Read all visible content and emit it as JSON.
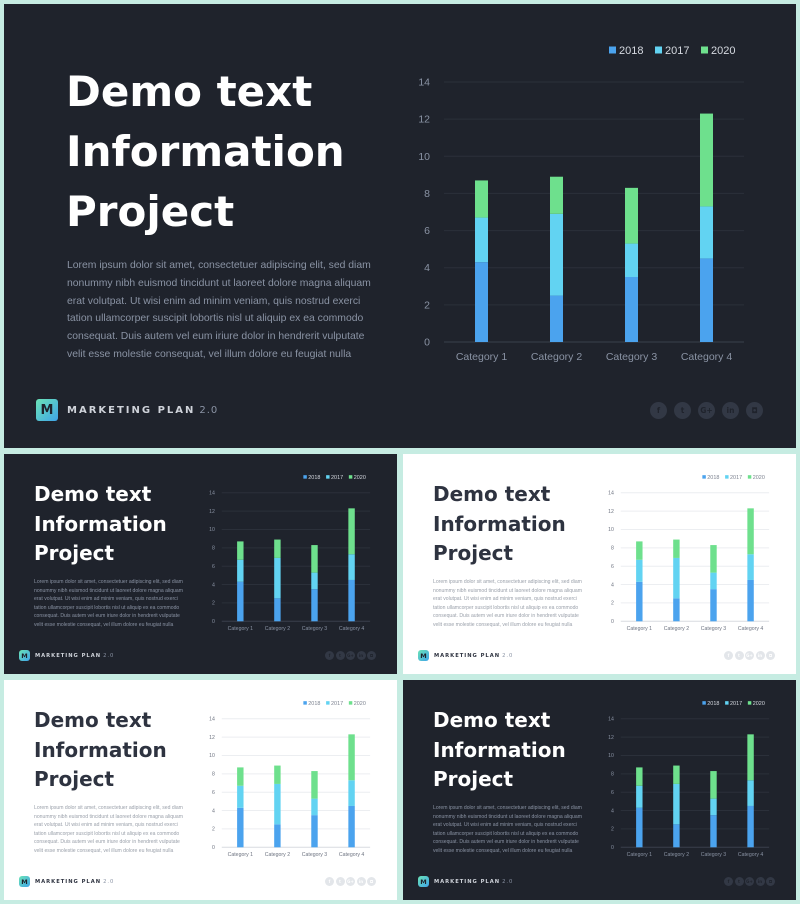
{
  "slide": {
    "title_lines": [
      "Demo text",
      "Information",
      "Project"
    ],
    "body_lines": [
      "Lorem ipsum dolor sit amet, consectetuer adipiscing elit, sed diam",
      "nonummy nibh euismod tincidunt ut laoreet dolore magna aliquam",
      "erat volutpat. Ut wisi enim ad minim veniam, quis nostrud exerci",
      "tation ullamcorper suscipit lobortis nisl ut aliquip ex ea commodo",
      "consequat. Duis autem vel eum iriure dolor in hendrerit vulputate",
      "velit esse molestie consequat, vel illum dolore eu feugiat nulla"
    ],
    "logo_letter": "M",
    "brand_name": "MARKETING PLAN",
    "brand_version": "2.0",
    "socials": [
      {
        "icon": "facebook-icon",
        "glyph": "f"
      },
      {
        "icon": "twitter-icon",
        "glyph": "t"
      },
      {
        "icon": "google-plus-icon",
        "glyph": "G+"
      },
      {
        "icon": "linkedin-icon",
        "glyph": "in"
      },
      {
        "icon": "instagram-icon",
        "glyph": "◘"
      }
    ]
  },
  "variants": [
    {
      "id": "main",
      "theme": "dark"
    },
    {
      "id": "tl",
      "theme": "dark"
    },
    {
      "id": "tr",
      "theme": "light"
    },
    {
      "id": "bl",
      "theme": "light"
    },
    {
      "id": "br",
      "theme": "dark"
    }
  ],
  "chart_data": {
    "type": "bar",
    "stacked": true,
    "categories": [
      "Category 1",
      "Category 2",
      "Category 3",
      "Category 4"
    ],
    "series": [
      {
        "name": "2018",
        "values": [
          4.3,
          2.5,
          3.5,
          4.5
        ],
        "color": "#4ba3ee"
      },
      {
        "name": "2017",
        "values": [
          2.4,
          4.4,
          1.8,
          2.8
        ],
        "color": "#62d3f2"
      },
      {
        "name": "2020",
        "values": [
          2.0,
          2.0,
          3.0,
          5.0
        ],
        "color": "#6ee08d"
      }
    ],
    "ylim": [
      0,
      14
    ],
    "yticks": [
      0,
      2,
      4,
      6,
      8,
      10,
      12,
      14
    ],
    "grid": true,
    "legend": "top-right"
  }
}
